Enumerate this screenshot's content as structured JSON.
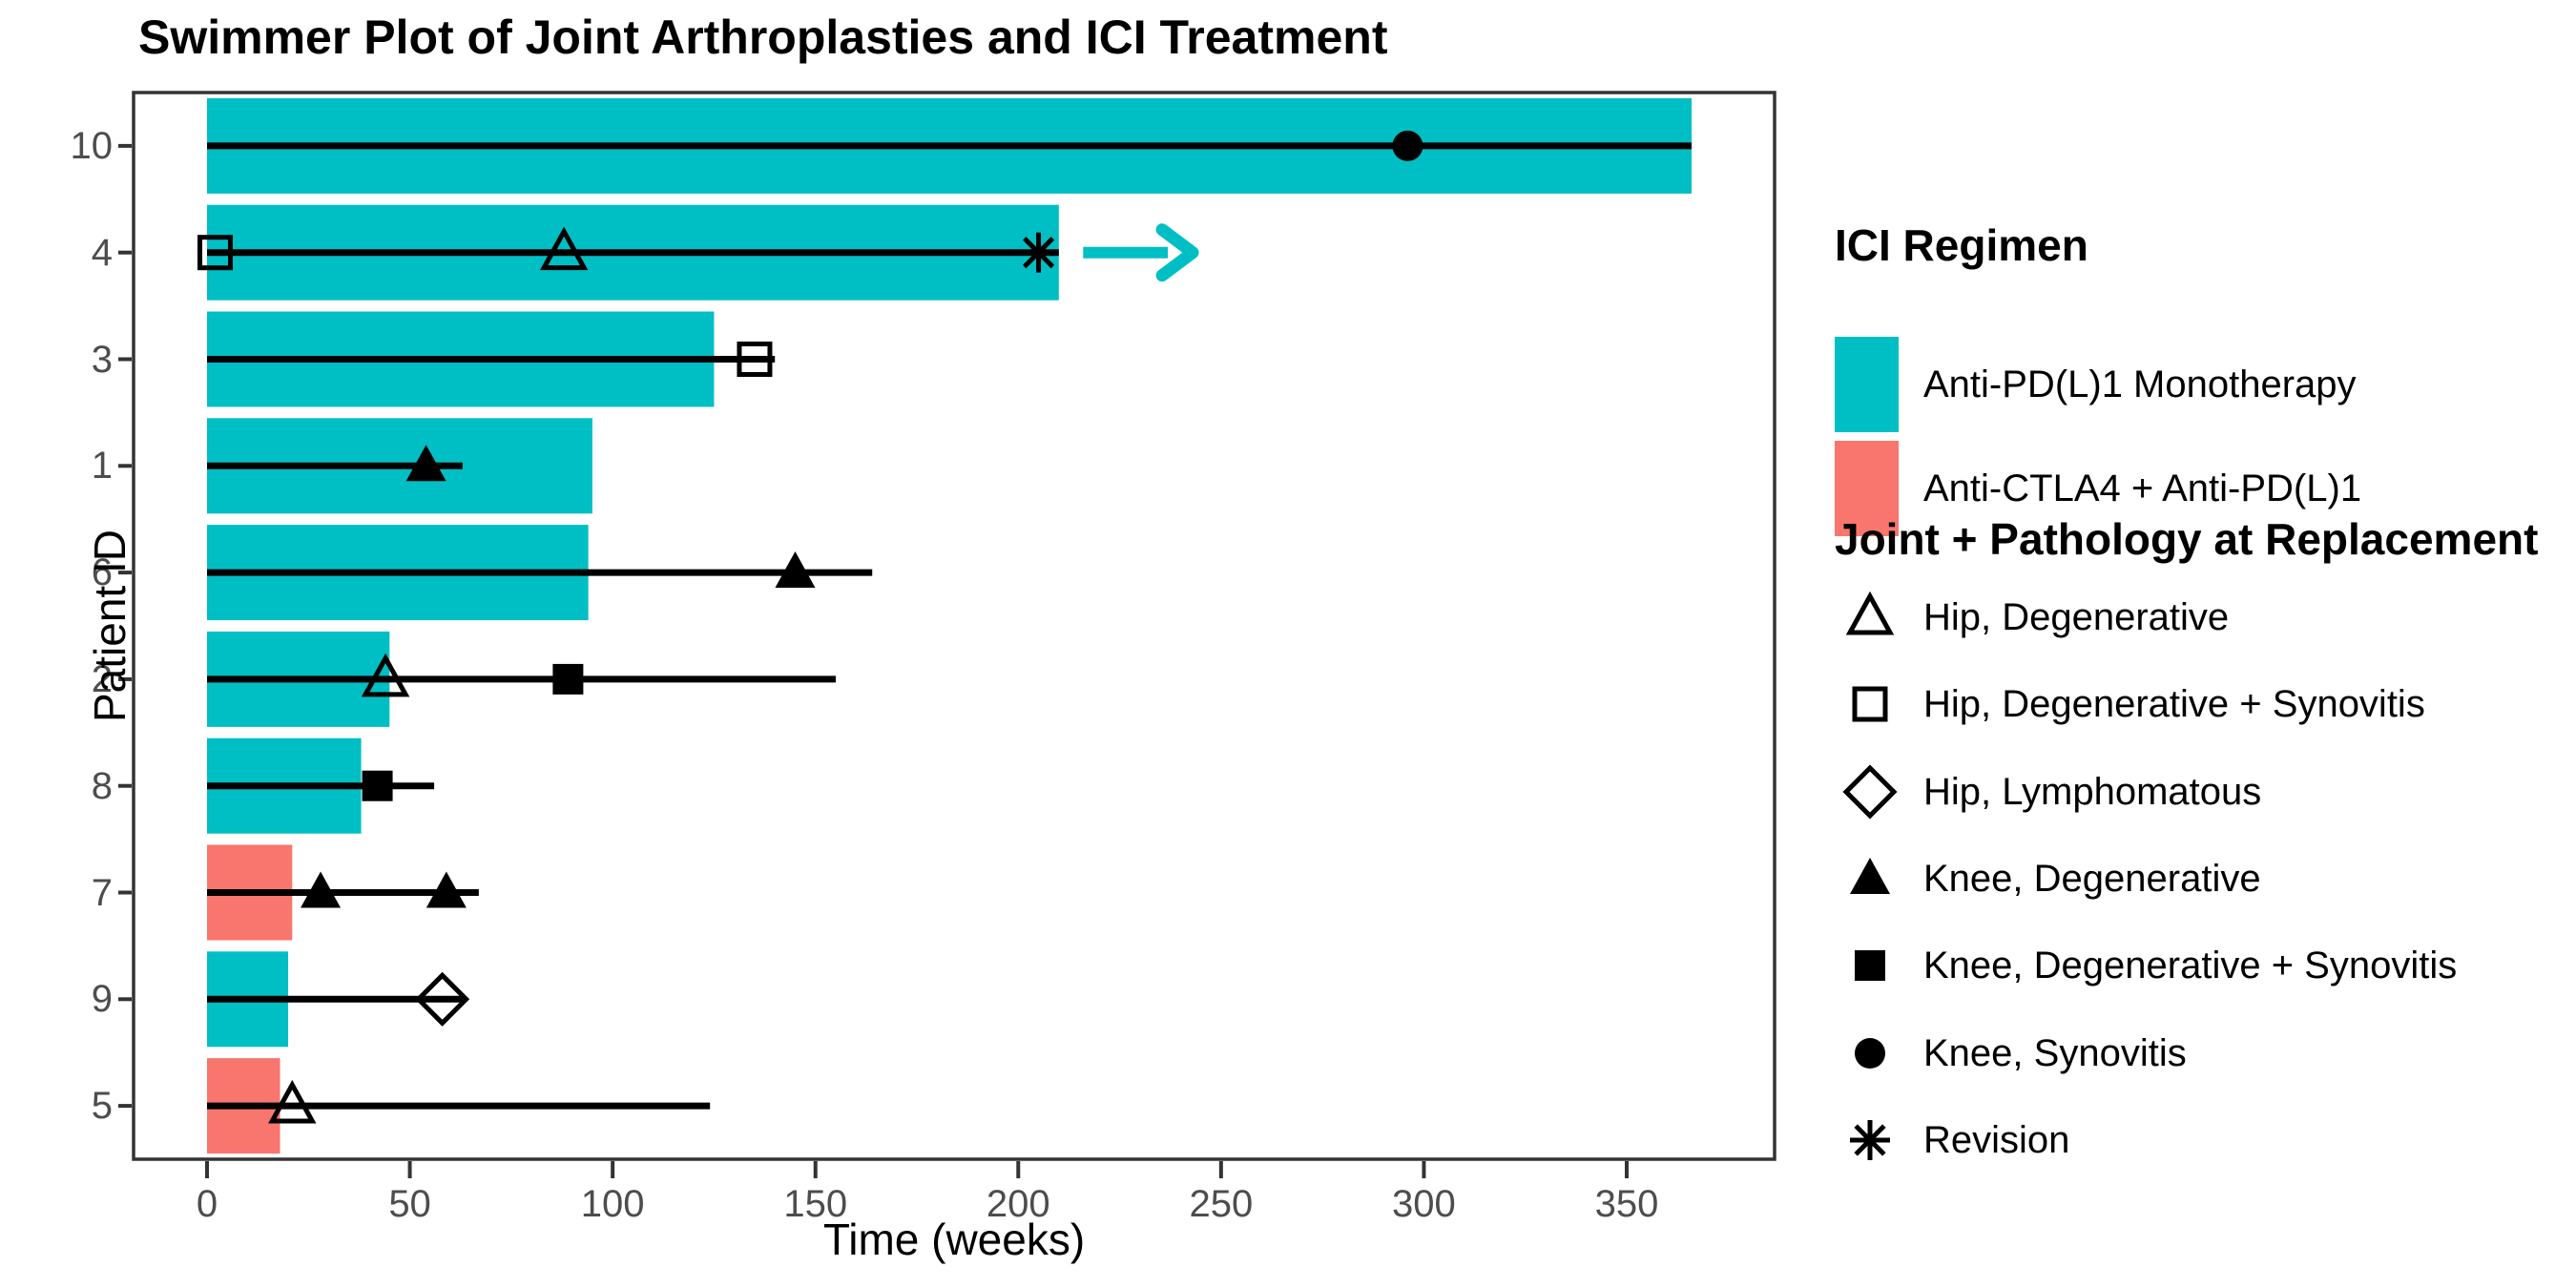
{
  "title": "Swimmer Plot of Joint Arthroplasties and ICI Treatment",
  "axes": {
    "x_label": "Time (weeks)",
    "y_label": "Patient ID",
    "x_ticks": [
      0,
      50,
      100,
      150,
      200,
      250,
      300,
      350
    ]
  },
  "colors": {
    "teal": "#00BFC4",
    "salmon": "#F8766D",
    "marker_black": "#000000",
    "axis_text": "#4D4D4D",
    "panel_border": "#333333"
  },
  "legend_regimen": {
    "title": "ICI Regimen",
    "items": [
      {
        "key": "anti_pd",
        "label": "Anti-PD(L)1 Monotherapy",
        "color": "#00BFC4"
      },
      {
        "key": "ctla4_pd",
        "label": "Anti-CTLA4 + Anti-PD(L)1",
        "color": "#F8766D"
      }
    ]
  },
  "legend_joint": {
    "title": "Joint + Pathology at Replacement",
    "items": [
      {
        "marker": "triangle-open",
        "label": "Hip, Degenerative"
      },
      {
        "marker": "square-open",
        "label": "Hip, Degenerative + Synovitis"
      },
      {
        "marker": "diamond-open",
        "label": "Hip, Lymphomatous"
      },
      {
        "marker": "triangle-filled",
        "label": "Knee, Degenerative"
      },
      {
        "marker": "square-filled",
        "label": "Knee, Degenerative + Synovitis"
      },
      {
        "marker": "circle-filled",
        "label": "Knee, Synovitis"
      },
      {
        "marker": "asterisk",
        "label": "Revision"
      }
    ]
  },
  "chart_data": {
    "type": "bar",
    "variant": "swimmer",
    "title": "Swimmer Plot of Joint Arthroplasties and ICI Treatment",
    "xlabel": "Time (weeks)",
    "ylabel": "Patient ID",
    "x_ticks": [
      0,
      50,
      100,
      150,
      200,
      250,
      300,
      350
    ],
    "xlim": [
      0,
      386
    ],
    "bar_meaning": "ICI treatment duration (weeks)",
    "line_meaning": "overall follow-up line (weeks)",
    "patients": [
      {
        "id": "10",
        "regimen": "anti_pd",
        "bar_end": 366,
        "line_end": 366,
        "ongoing": false,
        "events": [
          {
            "type": "circle-filled",
            "week": 296
          }
        ]
      },
      {
        "id": "4",
        "regimen": "anti_pd",
        "bar_end": 210,
        "line_end": 210,
        "ongoing": true,
        "arrow": {
          "from": 216,
          "to": 243
        },
        "events": [
          {
            "type": "square-open",
            "week": 2
          },
          {
            "type": "triangle-open",
            "week": 88
          },
          {
            "type": "asterisk",
            "week": 205
          }
        ]
      },
      {
        "id": "3",
        "regimen": "anti_pd",
        "bar_end": 125,
        "line_end": 140,
        "ongoing": false,
        "events": [
          {
            "type": "square-open",
            "week": 135
          }
        ]
      },
      {
        "id": "1",
        "regimen": "anti_pd",
        "bar_end": 95,
        "line_end": 63,
        "ongoing": false,
        "events": [
          {
            "type": "triangle-filled",
            "week": 54
          }
        ]
      },
      {
        "id": "6",
        "regimen": "anti_pd",
        "bar_end": 94,
        "line_end": 164,
        "ongoing": false,
        "events": [
          {
            "type": "triangle-filled",
            "week": 145
          }
        ]
      },
      {
        "id": "2",
        "regimen": "anti_pd",
        "bar_end": 45,
        "line_end": 155,
        "ongoing": false,
        "events": [
          {
            "type": "triangle-open",
            "week": 44
          },
          {
            "type": "square-filled",
            "week": 89
          }
        ]
      },
      {
        "id": "8",
        "regimen": "anti_pd",
        "bar_end": 38,
        "line_end": 56,
        "ongoing": false,
        "events": [
          {
            "type": "square-filled",
            "week": 42
          }
        ]
      },
      {
        "id": "7",
        "regimen": "ctla4_pd",
        "bar_end": 21,
        "line_end": 67,
        "ongoing": false,
        "events": [
          {
            "type": "triangle-filled",
            "week": 28
          },
          {
            "type": "triangle-filled",
            "week": 59
          }
        ]
      },
      {
        "id": "9",
        "regimen": "anti_pd",
        "bar_end": 20,
        "line_end": 63,
        "ongoing": false,
        "events": [
          {
            "type": "diamond-open",
            "week": 58
          }
        ]
      },
      {
        "id": "5",
        "regimen": "ctla4_pd",
        "bar_end": 18,
        "line_end": 124,
        "ongoing": false,
        "events": [
          {
            "type": "triangle-open",
            "week": 21
          }
        ]
      }
    ]
  }
}
